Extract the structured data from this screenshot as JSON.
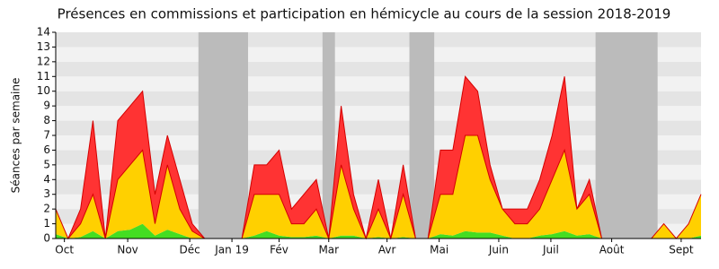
{
  "chart_data": {
    "type": "stacked-area",
    "title": "Présences en commissions et participation en hémicycle au cours de la session 2018-2019",
    "y_label": "Séances par semaine",
    "x": [
      0,
      1,
      2,
      3,
      4,
      5,
      6,
      7,
      8,
      9,
      10,
      11,
      12,
      13,
      14,
      15,
      16,
      17,
      18,
      19,
      20,
      21,
      22,
      23,
      24,
      25,
      26,
      27,
      28,
      29,
      30,
      31,
      32,
      33,
      34,
      35,
      36,
      37,
      38,
      39,
      40,
      41,
      42,
      43,
      44,
      45,
      46,
      47,
      48,
      49,
      50,
      51,
      52
    ],
    "xlim": [
      0,
      52
    ],
    "xticks": [
      {
        "value": 0.7,
        "label": "Oct"
      },
      {
        "value": 5.8,
        "label": "Nov"
      },
      {
        "value": 10.8,
        "label": "Déc"
      },
      {
        "value": 14.2,
        "label": "Jan 19"
      },
      {
        "value": 18,
        "label": "Fév"
      },
      {
        "value": 22,
        "label": "Mar"
      },
      {
        "value": 26.7,
        "label": "Avr"
      },
      {
        "value": 30.9,
        "label": "Mai"
      },
      {
        "value": 35.7,
        "label": "Juin"
      },
      {
        "value": 39.9,
        "label": "Juil"
      },
      {
        "value": 44.8,
        "label": "Août"
      },
      {
        "value": 50.4,
        "label": "Sept"
      }
    ],
    "ylim": [
      0,
      14
    ],
    "yticks": [
      0,
      1,
      2,
      3,
      4,
      5,
      6,
      7,
      8,
      9,
      10,
      11,
      12,
      13,
      14
    ],
    "grid": true,
    "shaded_ranges": [
      [
        11.5,
        15.5
      ],
      [
        21.5,
        22.5
      ],
      [
        28.5,
        30.5
      ],
      [
        43.5,
        48.5
      ]
    ],
    "shade_color": "#bbbbbb",
    "series": [
      {
        "color": "#44dd22",
        "values": [
          0.3,
          0,
          0.1,
          0.5,
          0,
          0.5,
          0.6,
          1,
          0.2,
          0.6,
          0.3,
          0,
          0,
          0,
          0,
          0,
          0.2,
          0.5,
          0.2,
          0.1,
          0.1,
          0.2,
          0,
          0.2,
          0.2,
          0,
          0.1,
          0,
          0.1,
          0,
          0,
          0.3,
          0.2,
          0.5,
          0.4,
          0.4,
          0.2,
          0,
          0,
          0.2,
          0.3,
          0.5,
          0.2,
          0.3,
          0,
          0,
          0,
          0,
          0,
          0,
          0,
          0,
          0.2
        ]
      },
      {
        "color": "#ffd000",
        "values": [
          1.7,
          0,
          0.9,
          2.5,
          0,
          3.5,
          4.4,
          5,
          0.8,
          4.4,
          1.7,
          0.5,
          0,
          0,
          0,
          0,
          2.8,
          2.5,
          2.8,
          0.9,
          0.9,
          1.8,
          0,
          4.8,
          1.8,
          0,
          1.9,
          0,
          2.9,
          0,
          0,
          2.7,
          2.8,
          6.5,
          6.6,
          3.6,
          1.8,
          1,
          1,
          1.8,
          3.7,
          5.5,
          1.8,
          2.7,
          0,
          0,
          0,
          0,
          0,
          1,
          0,
          1,
          2.8
        ]
      },
      {
        "color": "#ff3333",
        "values": [
          0,
          0,
          1,
          5,
          0,
          4,
          4,
          4,
          2,
          2,
          2,
          0.5,
          0,
          0,
          0,
          0,
          2,
          2,
          3,
          1,
          2,
          2,
          0,
          4,
          1,
          0,
          2,
          0,
          2,
          0,
          0,
          3,
          3,
          4,
          3,
          1,
          0,
          1,
          1,
          2,
          3,
          5,
          0,
          1,
          0,
          0,
          0,
          0,
          0,
          0,
          0,
          0,
          0
        ]
      }
    ]
  }
}
